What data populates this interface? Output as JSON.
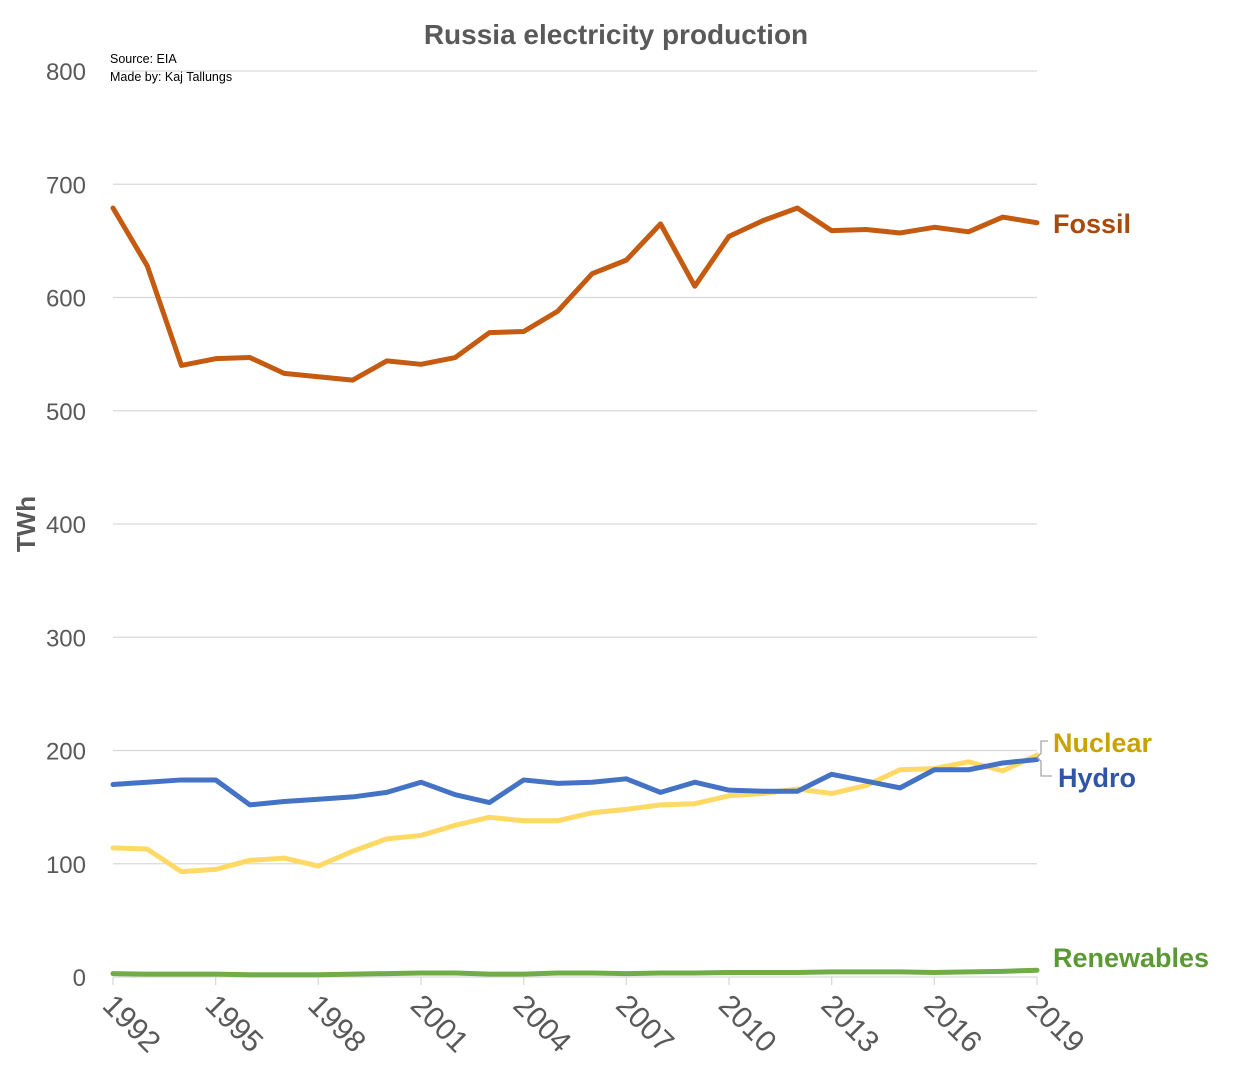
{
  "chart_data": {
    "type": "line",
    "title": "Russia electricity production",
    "annotations": {
      "source": "Source: EIA",
      "made_by": "Made by: Kaj Tallungs"
    },
    "ylabel": "TWh",
    "xlabel": "",
    "ylim": [
      0,
      800
    ],
    "yticks": [
      0,
      100,
      200,
      300,
      400,
      500,
      600,
      700,
      800
    ],
    "xticks": [
      1992,
      1995,
      1998,
      2001,
      2004,
      2007,
      2010,
      2013,
      2016,
      2019
    ],
    "grid": true,
    "legend": "inline labels at right end of lines",
    "x": [
      1992,
      1993,
      1994,
      1995,
      1996,
      1997,
      1998,
      1999,
      2000,
      2001,
      2002,
      2003,
      2004,
      2005,
      2006,
      2007,
      2008,
      2009,
      2010,
      2011,
      2012,
      2013,
      2014,
      2015,
      2016,
      2017,
      2018,
      2019
    ],
    "series": [
      {
        "name": "Fossil",
        "color": "#c55a11",
        "label_color": "#a84a0d",
        "values": [
          679,
          628,
          540,
          546,
          547,
          533,
          530,
          527,
          544,
          541,
          547,
          569,
          570,
          588,
          621,
          633,
          665,
          610,
          654,
          668,
          679,
          659,
          660,
          657,
          662,
          658,
          671,
          666
        ]
      },
      {
        "name": "Nuclear",
        "color": "#ffd966",
        "label_color": "#c9a200",
        "values": [
          114,
          113,
          93,
          95,
          103,
          105,
          98,
          111,
          122,
          125,
          134,
          141,
          138,
          138,
          145,
          148,
          152,
          153,
          160,
          162,
          166,
          162,
          169,
          183,
          184,
          190,
          182,
          196
        ]
      },
      {
        "name": "Hydro",
        "color": "#4472c4",
        "label_color": "#2f55a4",
        "values": [
          170,
          172,
          174,
          174,
          152,
          155,
          157,
          159,
          163,
          172,
          161,
          154,
          174,
          171,
          172,
          175,
          163,
          172,
          165,
          164,
          164,
          179,
          173,
          167,
          183,
          183,
          189,
          192
        ]
      },
      {
        "name": "Renewables",
        "color": "#70ad47",
        "label_color": "#5b9a33",
        "values": [
          3,
          2.5,
          2.5,
          2.5,
          2,
          2,
          2,
          2.5,
          3,
          3.5,
          3.5,
          2.5,
          2.5,
          3.5,
          3.5,
          3,
          3.5,
          3.5,
          4,
          4,
          4,
          4.5,
          4.5,
          4.5,
          4,
          4.5,
          5,
          6
        ]
      }
    ]
  }
}
